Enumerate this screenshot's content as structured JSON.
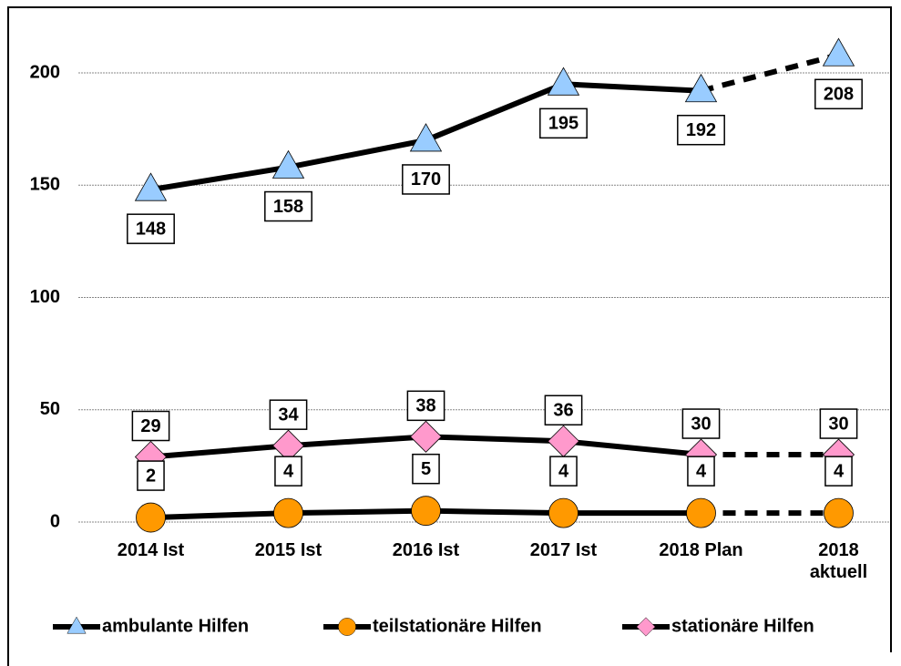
{
  "chart_data": {
    "type": "line",
    "categories": [
      "2014 Ist",
      "2015 Ist",
      "2016 Ist",
      "2017 Ist",
      "2018 Plan",
      "2018\naktuell"
    ],
    "series": [
      {
        "name": "ambulante Hilfen",
        "color": "#99ccff",
        "marker": "triangle",
        "label_position": "below",
        "values": [
          148,
          158,
          170,
          195,
          192,
          208
        ]
      },
      {
        "name": "teilstationäre Hilfen",
        "color": "#ff9900",
        "marker": "circle",
        "label_position": "above",
        "values": [
          2,
          4,
          5,
          4,
          4,
          4
        ]
      },
      {
        "name": "stationäre Hilfen",
        "color": "#ff99cc",
        "marker": "diamond",
        "label_position": "above",
        "values": [
          29,
          34,
          38,
          36,
          30,
          30
        ]
      }
    ],
    "dashed_from_index": 4,
    "ylim": [
      0,
      229
    ],
    "yticks": [
      0,
      50,
      100,
      150,
      200
    ],
    "grid": true,
    "legend": "bottom"
  }
}
